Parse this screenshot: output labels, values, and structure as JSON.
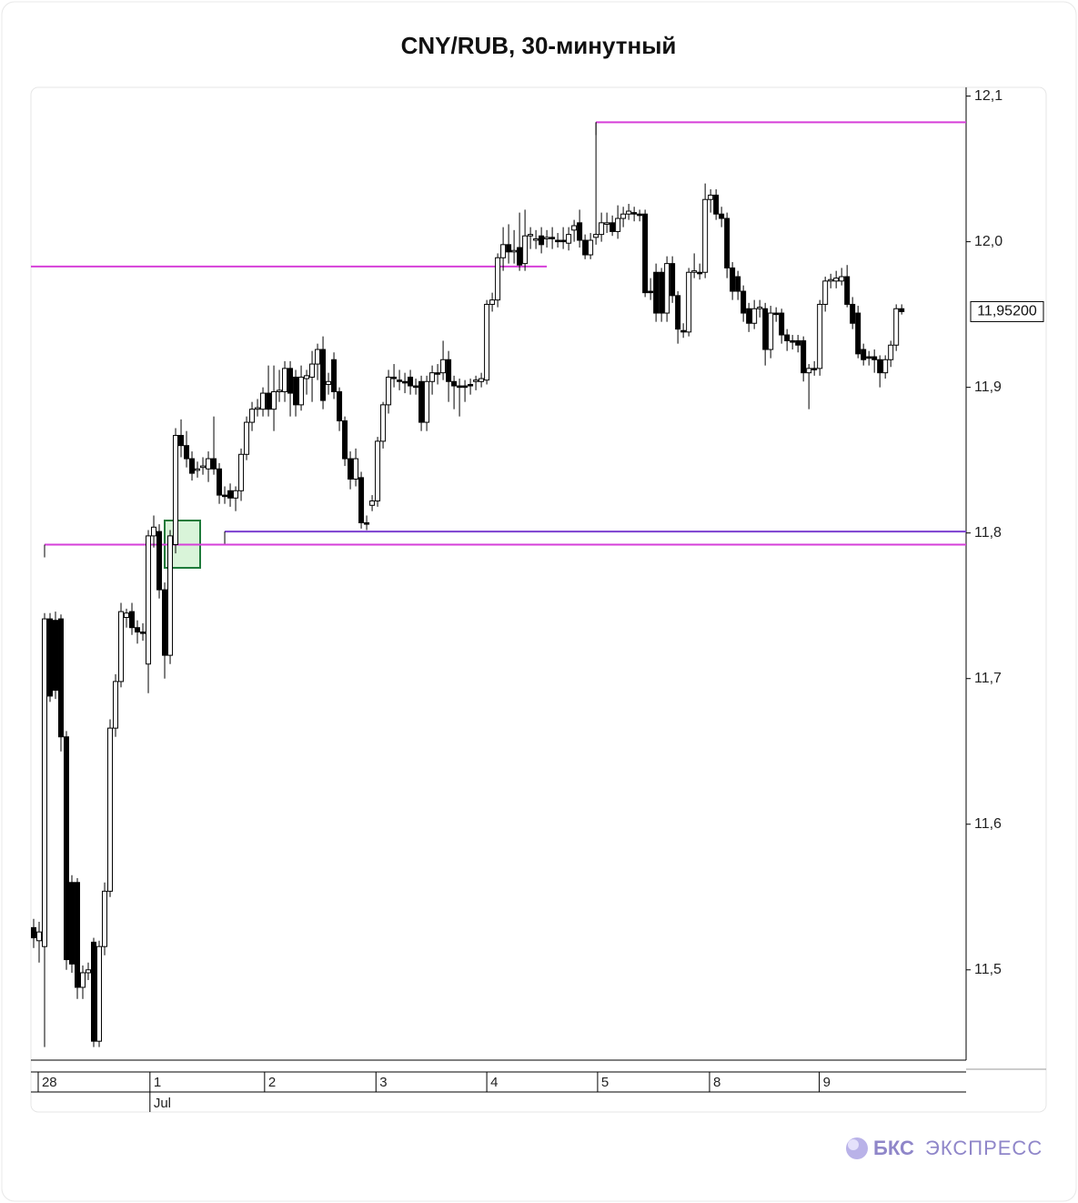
{
  "chart_data": {
    "type": "candlestick",
    "title": "CNY/RUB, 30-минутный",
    "ylim": [
      11.438,
      12.106
    ],
    "yticks": [
      {
        "value": 12.1,
        "label": "12,1"
      },
      {
        "value": 12.0,
        "label": "12,0"
      },
      {
        "value": 11.9,
        "label": "11,9"
      },
      {
        "value": 11.8,
        "label": "11,8"
      },
      {
        "value": 11.7,
        "label": "11,7"
      },
      {
        "value": 11.6,
        "label": "11,6"
      },
      {
        "value": 11.5,
        "label": "11,5"
      }
    ],
    "xlim": [
      -0.5,
      170.8
    ],
    "xticks": [
      {
        "value": 0.83,
        "label": "28"
      },
      {
        "value": 21.3,
        "label": "1"
      },
      {
        "value": 42.3,
        "label": "2"
      },
      {
        "value": 62.7,
        "label": "3"
      },
      {
        "value": 83.0,
        "label": "4"
      },
      {
        "value": 103.3,
        "label": "5"
      },
      {
        "value": 123.8,
        "label": "8"
      },
      {
        "value": 143.9,
        "label": "9"
      }
    ],
    "month_label": "Jul",
    "last_value_label": "11,95200",
    "up_color": "#ffffff",
    "down_color": "#000000",
    "candles": [
      [
        11.529,
        11.535,
        11.515,
        11.522
      ],
      [
        11.52,
        11.533,
        11.505,
        11.526
      ],
      [
        11.516,
        11.745,
        11.447,
        11.741
      ],
      [
        11.741,
        11.745,
        11.684,
        11.688
      ],
      [
        11.74,
        11.746,
        11.686,
        11.692
      ],
      [
        11.741,
        11.744,
        11.65,
        11.66
      ],
      [
        11.66,
        11.664,
        11.5,
        11.507
      ],
      [
        11.56,
        11.565,
        11.498,
        11.504
      ],
      [
        11.56,
        11.563,
        11.48,
        11.488
      ],
      [
        11.488,
        11.503,
        11.48,
        11.498
      ],
      [
        11.498,
        11.505,
        11.493,
        11.5
      ],
      [
        11.519,
        11.522,
        11.447,
        11.451
      ],
      [
        11.451,
        11.52,
        11.447,
        11.516
      ],
      [
        11.516,
        11.56,
        11.51,
        11.554
      ],
      [
        11.554,
        11.672,
        11.55,
        11.666
      ],
      [
        11.666,
        11.703,
        11.66,
        11.698
      ],
      [
        11.698,
        11.752,
        11.694,
        11.746
      ],
      [
        11.742,
        11.748,
        11.735,
        11.745
      ],
      [
        11.746,
        11.752,
        11.73,
        11.735
      ],
      [
        11.735,
        11.74,
        11.724,
        11.732
      ],
      [
        11.732,
        11.738,
        11.726,
        11.731
      ],
      [
        11.71,
        11.802,
        11.69,
        11.798
      ],
      [
        11.798,
        11.812,
        11.79,
        11.804
      ],
      [
        11.801,
        11.806,
        11.755,
        11.761
      ],
      [
        11.761,
        11.766,
        11.7,
        11.716
      ],
      [
        11.716,
        11.802,
        11.71,
        11.798
      ],
      [
        11.792,
        11.872,
        11.786,
        11.867
      ],
      [
        11.867,
        11.878,
        11.852,
        11.86
      ],
      [
        11.86,
        11.87,
        11.845,
        11.851
      ],
      [
        11.851,
        11.856,
        11.836,
        11.841
      ],
      [
        11.843,
        11.849,
        11.838,
        11.844
      ],
      [
        11.845,
        11.852,
        11.84,
        11.846
      ],
      [
        11.844,
        11.856,
        11.835,
        11.851
      ],
      [
        11.851,
        11.88,
        11.84,
        11.844
      ],
      [
        11.844,
        11.848,
        11.82,
        11.826
      ],
      [
        11.826,
        11.832,
        11.82,
        11.825
      ],
      [
        11.829,
        11.834,
        11.818,
        11.824
      ],
      [
        11.824,
        11.832,
        11.815,
        11.829
      ],
      [
        11.829,
        11.858,
        11.822,
        11.854
      ],
      [
        11.854,
        11.88,
        11.85,
        11.876
      ],
      [
        11.876,
        11.89,
        11.87,
        11.885
      ],
      [
        11.885,
        11.892,
        11.88,
        11.886
      ],
      [
        11.885,
        11.9,
        11.88,
        11.896
      ],
      [
        11.896,
        11.915,
        11.88,
        11.885
      ],
      [
        11.885,
        11.915,
        11.87,
        11.897
      ],
      [
        11.897,
        11.912,
        11.89,
        11.898
      ],
      [
        11.897,
        11.918,
        11.89,
        11.913
      ],
      [
        11.913,
        11.918,
        11.88,
        11.896
      ],
      [
        11.907,
        11.912,
        11.88,
        11.888
      ],
      [
        11.888,
        11.915,
        11.884,
        11.907
      ],
      [
        11.906,
        11.912,
        11.895,
        11.908
      ],
      [
        11.907,
        11.925,
        11.89,
        11.916
      ],
      [
        11.916,
        11.93,
        11.905,
        11.926
      ],
      [
        11.926,
        11.935,
        11.885,
        11.891
      ],
      [
        11.902,
        11.91,
        11.895,
        11.904
      ],
      [
        11.919,
        11.924,
        11.892,
        11.897
      ],
      [
        11.897,
        11.9,
        11.87,
        11.877
      ],
      [
        11.877,
        11.88,
        11.846,
        11.851
      ],
      [
        11.851,
        11.856,
        11.83,
        11.837
      ],
      [
        11.837,
        11.858,
        11.832,
        11.851
      ],
      [
        11.838,
        11.842,
        11.803,
        11.807
      ],
      [
        11.807,
        11.812,
        11.802,
        11.806
      ],
      [
        11.819,
        11.826,
        11.815,
        11.822
      ],
      [
        11.822,
        11.866,
        11.818,
        11.863
      ],
      [
        11.863,
        11.89,
        11.858,
        11.888
      ],
      [
        11.888,
        11.912,
        11.882,
        11.907
      ],
      [
        11.907,
        11.916,
        11.9,
        11.906
      ],
      [
        11.905,
        11.912,
        11.898,
        11.904
      ],
      [
        11.904,
        11.91,
        11.896,
        11.903
      ],
      [
        11.907,
        11.912,
        11.895,
        11.901
      ],
      [
        11.901,
        11.906,
        11.895,
        11.9
      ],
      [
        11.904,
        11.908,
        11.87,
        11.876
      ],
      [
        11.876,
        11.908,
        11.87,
        11.904
      ],
      [
        11.904,
        11.915,
        11.895,
        11.91
      ],
      [
        11.91,
        11.916,
        11.902,
        11.909
      ],
      [
        11.91,
        11.932,
        11.905,
        11.919
      ],
      [
        11.919,
        11.925,
        11.89,
        11.904
      ],
      [
        11.904,
        11.908,
        11.885,
        11.901
      ],
      [
        11.901,
        11.906,
        11.88,
        11.9
      ],
      [
        11.901,
        11.905,
        11.89,
        11.9
      ],
      [
        11.902,
        11.906,
        11.895,
        11.901
      ],
      [
        11.904,
        11.908,
        11.898,
        11.905
      ],
      [
        11.904,
        11.91,
        11.9,
        11.906
      ],
      [
        11.905,
        11.96,
        11.902,
        11.957
      ],
      [
        11.957,
        11.965,
        11.952,
        11.96
      ],
      [
        11.96,
        11.992,
        11.955,
        11.989
      ],
      [
        11.989,
        12.01,
        11.98,
        11.998
      ],
      [
        11.998,
        12.012,
        11.985,
        11.993
      ],
      [
        11.993,
        12.008,
        11.985,
        11.994
      ],
      [
        11.996,
        12.02,
        11.98,
        11.984
      ],
      [
        11.985,
        12.022,
        11.98,
        12.004
      ],
      [
        12.004,
        12.01,
        11.995,
        12.005
      ],
      [
        12.001,
        12.008,
        11.995,
        12.002
      ],
      [
        12.004,
        12.01,
        11.992,
        11.998
      ],
      [
        12.002,
        12.008,
        11.996,
        12.003
      ],
      [
        12.003,
        12.01,
        11.995,
        12.002
      ],
      [
        12.001,
        12.006,
        11.996,
        12.0
      ],
      [
        12.001,
        12.01,
        11.995,
        12.0
      ],
      [
        11.999,
        12.01,
        11.994,
        12.005
      ],
      [
        12.008,
        12.015,
        12.0,
        12.011
      ],
      [
        12.013,
        12.022,
        11.996,
        12.001
      ],
      [
        12.001,
        12.005,
        11.988,
        11.991
      ],
      [
        11.991,
        12.006,
        11.988,
        12.001
      ],
      [
        12.003,
        12.082,
        11.998,
        12.005
      ],
      [
        12.005,
        12.02,
        12.0,
        12.013
      ],
      [
        12.012,
        12.02,
        12.006,
        12.013
      ],
      [
        12.013,
        12.018,
        12.004,
        12.007
      ],
      [
        12.007,
        12.025,
        12.002,
        12.016
      ],
      [
        12.016,
        12.024,
        12.01,
        12.019
      ],
      [
        12.019,
        12.026,
        12.015,
        12.021
      ],
      [
        12.02,
        12.024,
        12.014,
        12.019
      ],
      [
        12.019,
        12.022,
        12.014,
        12.018
      ],
      [
        12.019,
        12.022,
        11.962,
        11.965
      ],
      [
        11.966,
        11.975,
        11.96,
        11.965
      ],
      [
        11.979,
        11.985,
        11.945,
        11.951
      ],
      [
        11.979,
        11.982,
        11.945,
        11.951
      ],
      [
        11.951,
        11.99,
        11.945,
        11.985
      ],
      [
        11.985,
        11.99,
        11.958,
        11.963
      ],
      [
        11.963,
        11.966,
        11.93,
        11.94
      ],
      [
        11.939,
        11.944,
        11.934,
        11.938
      ],
      [
        11.938,
        11.982,
        11.935,
        11.979
      ],
      [
        11.979,
        11.992,
        11.975,
        11.98
      ],
      [
        11.979,
        11.985,
        11.974,
        11.978
      ],
      [
        11.979,
        12.04,
        11.975,
        12.029
      ],
      [
        12.029,
        12.036,
        12.02,
        12.032
      ],
      [
        12.032,
        12.036,
        12.015,
        12.019
      ],
      [
        12.019,
        12.024,
        12.01,
        12.016
      ],
      [
        12.016,
        12.02,
        11.975,
        11.982
      ],
      [
        11.982,
        11.986,
        11.96,
        11.966
      ],
      [
        11.976,
        11.98,
        11.96,
        11.966
      ],
      [
        11.966,
        11.97,
        11.945,
        11.951
      ],
      [
        11.954,
        11.958,
        11.938,
        11.944
      ],
      [
        11.944,
        11.96,
        11.94,
        11.954
      ],
      [
        11.954,
        11.96,
        11.948,
        11.955
      ],
      [
        11.954,
        11.958,
        11.915,
        11.926
      ],
      [
        11.926,
        11.956,
        11.92,
        11.951
      ],
      [
        11.951,
        11.955,
        11.945,
        11.95
      ],
      [
        11.951,
        11.954,
        11.93,
        11.936
      ],
      [
        11.936,
        11.94,
        11.925,
        11.932
      ],
      [
        11.932,
        11.936,
        11.926,
        11.931
      ],
      [
        11.932,
        11.936,
        11.924,
        11.929
      ],
      [
        11.932,
        11.935,
        11.904,
        11.91
      ],
      [
        11.91,
        11.916,
        11.885,
        11.913
      ],
      [
        11.913,
        11.918,
        11.908,
        11.912
      ],
      [
        11.913,
        11.96,
        11.908,
        11.957
      ],
      [
        11.957,
        11.976,
        11.952,
        11.973
      ],
      [
        11.973,
        11.978,
        11.968,
        11.974
      ],
      [
        11.973,
        11.98,
        11.968,
        11.975
      ],
      [
        11.973,
        11.982,
        11.97,
        11.976
      ],
      [
        11.976,
        11.984,
        11.955,
        11.957
      ],
      [
        11.957,
        11.962,
        11.94,
        11.944
      ],
      [
        11.951,
        11.956,
        11.92,
        11.923
      ],
      [
        11.926,
        11.93,
        11.915,
        11.919
      ],
      [
        11.921,
        11.925,
        11.915,
        11.92
      ],
      [
        11.921,
        11.926,
        11.91,
        11.919
      ],
      [
        11.919,
        11.922,
        11.9,
        11.91
      ],
      [
        11.91,
        11.922,
        11.906,
        11.919
      ],
      [
        11.919,
        11.932,
        11.914,
        11.929
      ],
      [
        11.929,
        11.957,
        11.925,
        11.954
      ],
      [
        11.954,
        11.957,
        11.95,
        11.952
      ]
    ],
    "levels": [
      {
        "value": 12.082,
        "start": 103,
        "color": "#d63fd9"
      },
      {
        "value": 11.983,
        "end": 94,
        "color": "#d63fd9"
      },
      {
        "value": 11.801,
        "start": 35,
        "color": "#7b3fd0"
      },
      {
        "value": 11.792,
        "start": 2,
        "color": "#d63fd9"
      }
    ]
  },
  "footer": {
    "brand_bold": "БКС",
    "brand_text": "ЭКСПРЕСС"
  }
}
